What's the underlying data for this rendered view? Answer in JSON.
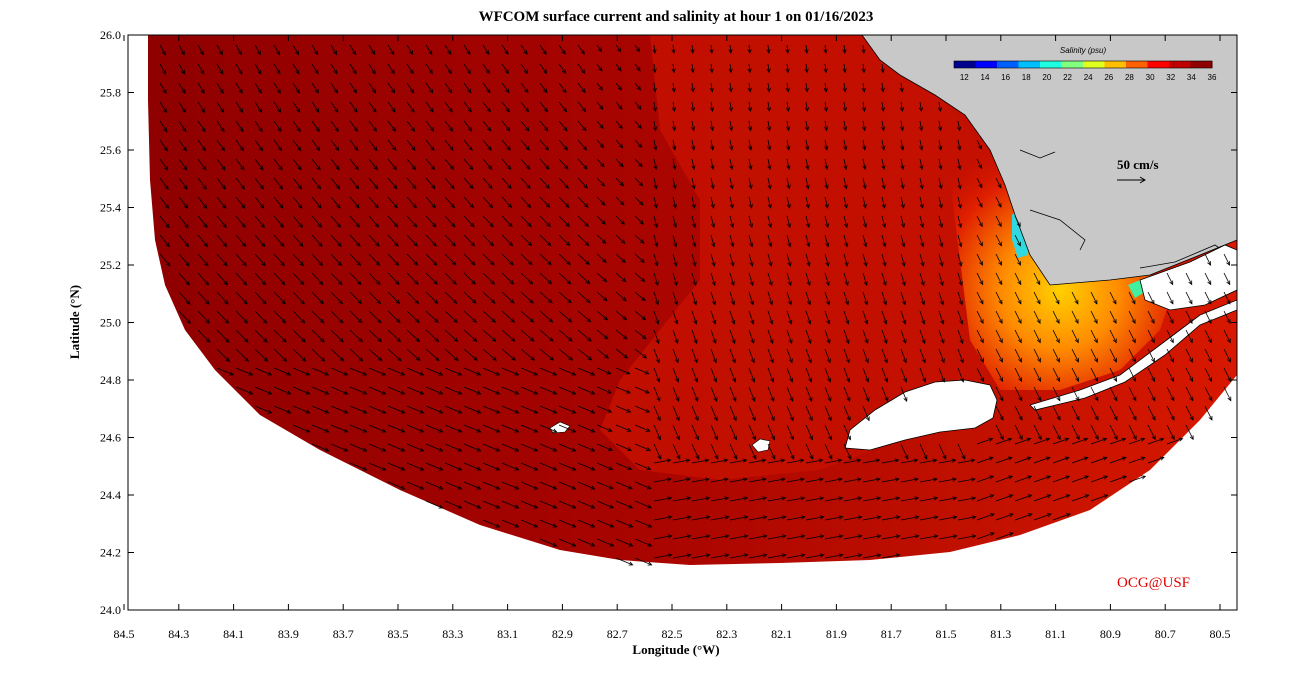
{
  "title": "WFCOM surface current and salinity at hour 1 on 01/16/2023",
  "xlabel": "Longitude (°W)",
  "ylabel": "Latitude (°N)",
  "x_ticks": [
    "84.5",
    "84.3",
    "84.1",
    "83.9",
    "83.7",
    "83.5",
    "83.3",
    "83.1",
    "82.9",
    "82.7",
    "82.5",
    "82.3",
    "82.1",
    "81.9",
    "81.7",
    "81.5",
    "81.3",
    "81.1",
    "80.9",
    "80.7",
    "80.5"
  ],
  "y_ticks": [
    "26.0",
    "25.8",
    "25.6",
    "25.4",
    "25.2",
    "25.0",
    "24.8",
    "24.6",
    "24.4",
    "24.2",
    "24.0"
  ],
  "colorbar": {
    "title": "Salinity (psu)",
    "labels": [
      "12",
      "14",
      "16",
      "18",
      "20",
      "22",
      "24",
      "26",
      "28",
      "30",
      "32",
      "34",
      "36"
    ],
    "range": [
      11,
      36
    ],
    "colors": [
      "#00008f",
      "#0000ff",
      "#0060ff",
      "#00bfff",
      "#20ffdf",
      "#80ff80",
      "#dfff20",
      "#ffbf00",
      "#ff6000",
      "#ff0000",
      "#bf0000",
      "#8f0000"
    ]
  },
  "scale_label": "50 cm/s",
  "credit": "OCG@USF",
  "colors": {
    "land": "#c8c8c8",
    "ocean_dark": "#900000",
    "ocean_mid": "#b40a00",
    "ocean_red": "#d81800",
    "coast_orange": "#ff8a00",
    "coast_yellow": "#ffd000",
    "coast_cyan": "#30e0d0"
  }
}
